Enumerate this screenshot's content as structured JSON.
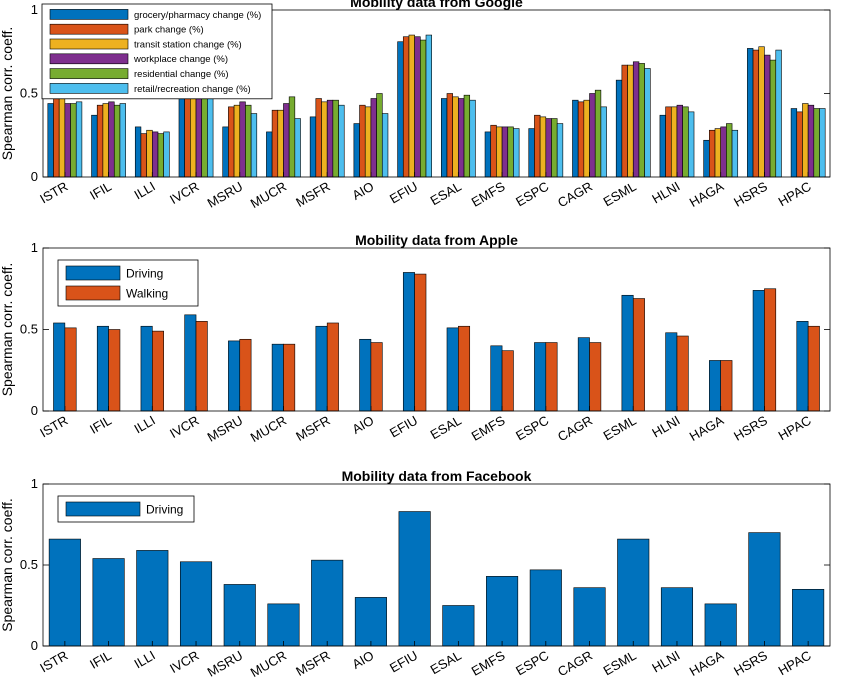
{
  "chart_data": [
    {
      "type": "bar",
      "title": "Mobility data from Google",
      "ylabel": "Spearman corr. coeff.",
      "ylim": [
        0,
        1.0
      ],
      "yticks": [
        0,
        0.5,
        1
      ],
      "legend": "top-left",
      "categories": [
        "ISTR",
        "IFIL",
        "ILLI",
        "IVCR",
        "MSRU",
        "MUCR",
        "MSFR",
        "AIO",
        "EFIU",
        "ESAL",
        "EMFS",
        "ESPC",
        "CAGR",
        "ESML",
        "HLNI",
        "HAGA",
        "HSRS",
        "HPAC"
      ],
      "series": [
        {
          "name": "grocery/pharmacy change (%)",
          "color": "#0072BD",
          "values": [
            0.44,
            0.37,
            0.3,
            0.47,
            0.3,
            0.27,
            0.36,
            0.32,
            0.81,
            0.47,
            0.27,
            0.29,
            0.46,
            0.58,
            0.37,
            0.22,
            0.77,
            0.41
          ]
        },
        {
          "name": "park change (%)",
          "color": "#D95319",
          "values": [
            0.48,
            0.43,
            0.26,
            0.54,
            0.42,
            0.4,
            0.47,
            0.43,
            0.84,
            0.5,
            0.31,
            0.37,
            0.45,
            0.67,
            0.42,
            0.28,
            0.76,
            0.39
          ]
        },
        {
          "name": "transit station change (%)",
          "color": "#EDB120",
          "values": [
            0.47,
            0.44,
            0.28,
            0.53,
            0.43,
            0.4,
            0.45,
            0.42,
            0.85,
            0.48,
            0.3,
            0.36,
            0.46,
            0.67,
            0.42,
            0.29,
            0.78,
            0.44
          ]
        },
        {
          "name": "workplace change (%)",
          "color": "#7E2F8E",
          "values": [
            0.44,
            0.45,
            0.27,
            0.52,
            0.45,
            0.44,
            0.46,
            0.47,
            0.84,
            0.47,
            0.3,
            0.35,
            0.5,
            0.69,
            0.43,
            0.3,
            0.73,
            0.43
          ]
        },
        {
          "name": "residential change (%)",
          "color": "#77AC30",
          "values": [
            0.44,
            0.43,
            0.26,
            0.52,
            0.43,
            0.48,
            0.46,
            0.5,
            0.82,
            0.49,
            0.3,
            0.35,
            0.52,
            0.68,
            0.42,
            0.32,
            0.7,
            0.41
          ]
        },
        {
          "name": "retail/recreation change (%)",
          "color": "#4DBEEE",
          "values": [
            0.45,
            0.44,
            0.27,
            0.54,
            0.38,
            0.35,
            0.43,
            0.38,
            0.85,
            0.46,
            0.29,
            0.32,
            0.42,
            0.65,
            0.39,
            0.28,
            0.76,
            0.41
          ]
        }
      ]
    },
    {
      "type": "bar",
      "title": "Mobility data from Apple",
      "ylabel": "Spearman corr. coeff.",
      "ylim": [
        0,
        1.0
      ],
      "yticks": [
        0,
        0.5,
        1
      ],
      "legend": "top-left",
      "categories": [
        "ISTR",
        "IFIL",
        "ILLI",
        "IVCR",
        "MSRU",
        "MUCR",
        "MSFR",
        "AIO",
        "EFIU",
        "ESAL",
        "EMFS",
        "ESPC",
        "CAGR",
        "ESML",
        "HLNI",
        "HAGA",
        "HSRS",
        "HPAC"
      ],
      "series": [
        {
          "name": "Driving",
          "color": "#0072BD",
          "values": [
            0.54,
            0.52,
            0.52,
            0.59,
            0.43,
            0.41,
            0.52,
            0.44,
            0.85,
            0.51,
            0.4,
            0.42,
            0.45,
            0.71,
            0.48,
            0.31,
            0.74,
            0.55
          ]
        },
        {
          "name": "Walking",
          "color": "#D95319",
          "values": [
            0.51,
            0.5,
            0.49,
            0.55,
            0.44,
            0.41,
            0.54,
            0.42,
            0.84,
            0.52,
            0.37,
            0.42,
            0.42,
            0.69,
            0.46,
            0.31,
            0.75,
            0.52
          ]
        }
      ]
    },
    {
      "type": "bar",
      "title": "Mobility data from Facebook",
      "ylabel": "Spearman corr. coeff.",
      "ylim": [
        0,
        1.0
      ],
      "yticks": [
        0,
        0.5,
        1
      ],
      "legend": "top-left",
      "categories": [
        "ISTR",
        "IFIL",
        "ILLI",
        "IVCR",
        "MSRU",
        "MUCR",
        "MSFR",
        "AIO",
        "EFIU",
        "ESAL",
        "EMFS",
        "ESPC",
        "CAGR",
        "ESML",
        "HLNI",
        "HAGA",
        "HSRS",
        "HPAC"
      ],
      "series": [
        {
          "name": "Driving",
          "color": "#0072BD",
          "values": [
            0.66,
            0.54,
            0.59,
            0.52,
            0.38,
            0.26,
            0.53,
            0.3,
            0.83,
            0.25,
            0.43,
            0.47,
            0.36,
            0.66,
            0.36,
            0.26,
            0.7,
            0.35
          ]
        }
      ]
    }
  ]
}
